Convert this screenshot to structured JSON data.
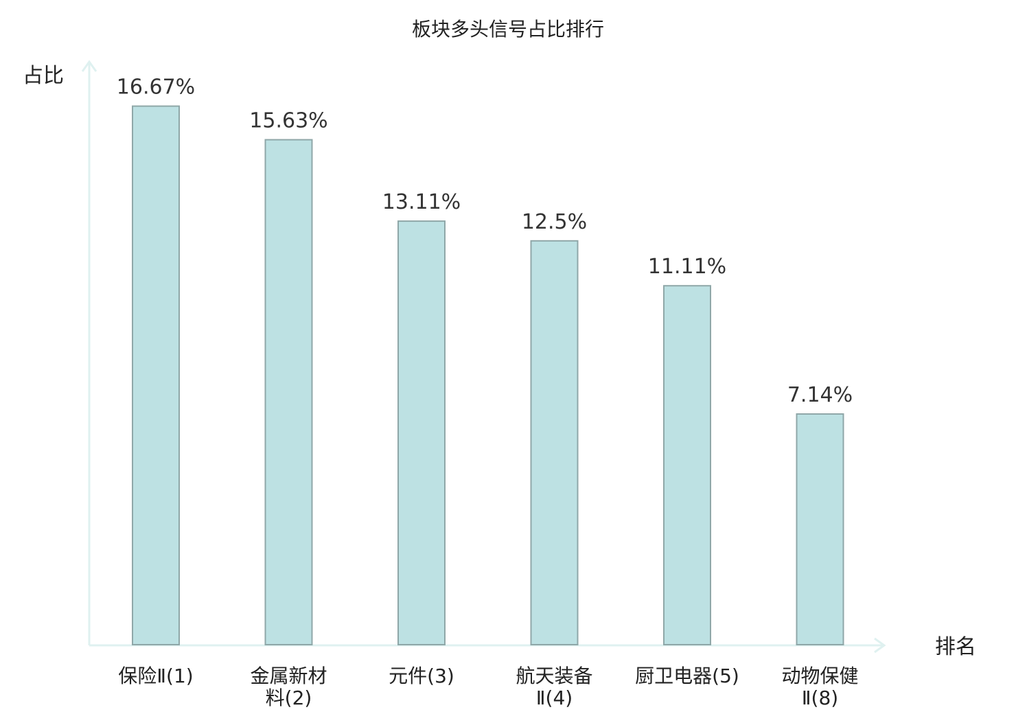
{
  "chart_data": {
    "type": "bar",
    "title": "板块多头信号占比排行",
    "xlabel": "排名",
    "ylabel": "占比",
    "ylim": [
      0,
      18
    ],
    "grid": false,
    "categories": [
      [
        "保险Ⅱ(1)"
      ],
      [
        "金属新材",
        "料(2)"
      ],
      [
        "元件(3)"
      ],
      [
        "航天装备",
        "Ⅱ(4)"
      ],
      [
        "厨卫电器(5)"
      ],
      [
        "动物保健",
        "Ⅱ(8)"
      ]
    ],
    "values": [
      16.67,
      15.63,
      13.11,
      12.5,
      11.11,
      7.14
    ],
    "value_labels": [
      "16.67%",
      "15.63%",
      "13.11%",
      "12.5%",
      "11.11%",
      "7.14%"
    ],
    "highlight_index": 5,
    "colors": {
      "bar_fill": "#bde1e3",
      "bar_stroke": "#8fa7a8",
      "axis": "#dff1f0",
      "text": "#222222",
      "value_text": "#333333",
      "highlight_text": "#e02020"
    }
  }
}
